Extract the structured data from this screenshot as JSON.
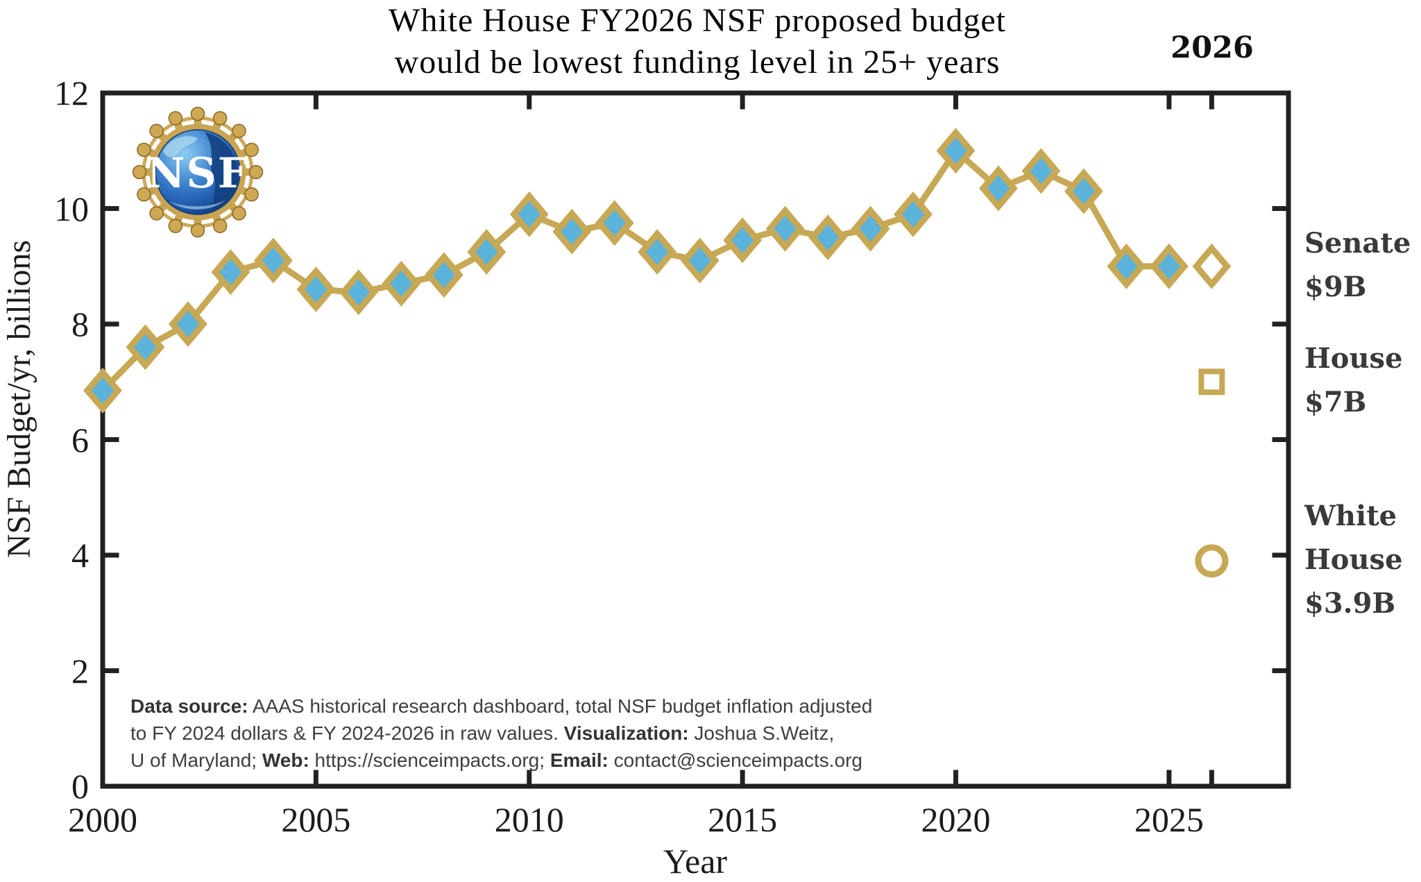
{
  "title": {
    "line1": "White House FY2026 NSF proposed budget",
    "line2": "would be lowest funding level in 25+ years"
  },
  "top_right_year_label": "2026",
  "logo": {
    "text": "NSF"
  },
  "chart_data": {
    "type": "line",
    "title": "White House FY2026 NSF proposed budget would be lowest funding level in 25+ years",
    "xlabel": "Year",
    "ylabel": "NSF Budget/yr, billions",
    "xlim": [
      2000,
      2027.8
    ],
    "ylim": [
      0,
      12
    ],
    "grid": false,
    "xticks_labeled": [
      2000,
      2005,
      2010,
      2015,
      2020,
      2025
    ],
    "xticks_unlabeled": [
      2026
    ],
    "yticks": [
      0,
      2,
      4,
      6,
      8,
      10,
      12
    ],
    "series": [
      {
        "name": "Total NSF budget, inflation adjusted to FY 2024 dollars",
        "marker": "diamond-filled",
        "x": [
          2000,
          2001,
          2002,
          2003,
          2004,
          2005,
          2006,
          2007,
          2008,
          2009,
          2010,
          2011,
          2012,
          2013,
          2014,
          2015,
          2016,
          2017,
          2018,
          2019,
          2020,
          2021,
          2022,
          2023,
          2024,
          2025
        ],
        "y": [
          6.85,
          7.6,
          8.0,
          8.9,
          9.1,
          8.6,
          8.55,
          8.7,
          8.85,
          9.25,
          9.9,
          9.6,
          9.75,
          9.25,
          9.1,
          9.45,
          9.65,
          9.5,
          9.65,
          9.9,
          11.0,
          10.35,
          10.65,
          10.3,
          9.0,
          9.0
        ]
      }
    ],
    "proposals_2026": [
      {
        "name": "Senate",
        "x": 2026,
        "y": 9.0,
        "marker": "diamond-open",
        "label_lines": [
          "Senate",
          "$9B"
        ]
      },
      {
        "name": "House",
        "x": 2026,
        "y": 7.0,
        "marker": "square-open",
        "label_lines": [
          "House",
          "$7B"
        ]
      },
      {
        "name": "White House",
        "x": 2026,
        "y": 3.9,
        "marker": "circle-open",
        "label_lines": [
          "White",
          "House",
          "$3.9B"
        ]
      }
    ]
  },
  "colors": {
    "line": "#C7A855",
    "marker_fill": "#5BB3DB",
    "marker_open_fill": "#FFFFFF",
    "axis": "#212121",
    "tick_text": "#1b1b1b",
    "annotation_text": "#393939",
    "source_text": "#3e3e3e"
  },
  "source_note": {
    "lines": [
      [
        {
          "b": "Data source:"
        },
        {
          "t": " AAAS historical research dashboard, total NSF budget inflation adjusted"
        }
      ],
      [
        {
          "t": "to FY 2024 dollars & FY 2024-2026 in raw values. "
        },
        {
          "b": "Visualization:"
        },
        {
          "t": " Joshua S.Weitz,"
        }
      ],
      [
        {
          "t": "U of Maryland; "
        },
        {
          "b": "Web:"
        },
        {
          "t": " https://scienceimpacts.org; "
        },
        {
          "b": "Email:"
        },
        {
          "t": " contact@scienceimpacts.org"
        }
      ]
    ]
  }
}
